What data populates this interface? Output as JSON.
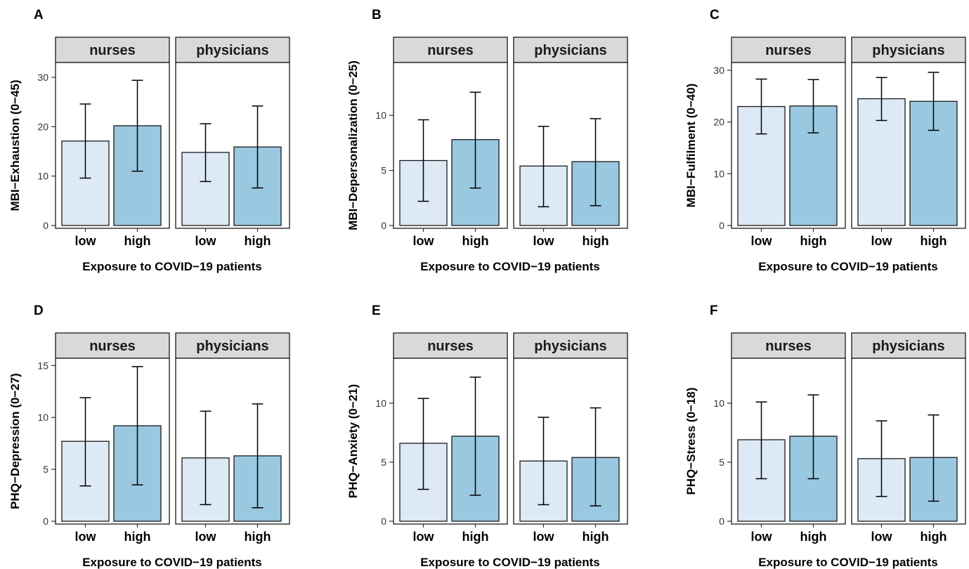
{
  "figure": {
    "xlabel": "Exposure to COVID−19 patients",
    "facets": [
      "nurses",
      "physicians"
    ],
    "categories": [
      "low",
      "high"
    ],
    "colors": {
      "low": "#dde9f5",
      "high": "#9ac8e0",
      "strip": "#d9d9d9",
      "border": "#1a1a1a"
    }
  },
  "chart_data": [
    {
      "type": "bar",
      "panel": "A",
      "ylabel": "MBI−Exhaustion (0−45)",
      "ylim": [
        0,
        33
      ],
      "yticks": [
        0,
        10,
        20,
        30
      ],
      "series": [
        {
          "facet": "nurses",
          "values": [
            17.1,
            20.2
          ],
          "error_low": [
            9.6,
            11.0
          ],
          "error_high": [
            24.6,
            29.4
          ]
        },
        {
          "facet": "physicians",
          "values": [
            14.8,
            15.9
          ],
          "error_low": [
            8.9,
            7.6
          ],
          "error_high": [
            20.6,
            24.2
          ]
        }
      ]
    },
    {
      "type": "bar",
      "panel": "B",
      "ylabel": "MBI−Depersonalization (0−25)",
      "ylim": [
        0,
        14.8
      ],
      "yticks": [
        0,
        5,
        10
      ],
      "series": [
        {
          "facet": "nurses",
          "values": [
            5.9,
            7.8
          ],
          "error_low": [
            2.2,
            3.4
          ],
          "error_high": [
            9.6,
            12.1
          ]
        },
        {
          "facet": "physicians",
          "values": [
            5.4,
            5.8
          ],
          "error_low": [
            1.7,
            1.8
          ],
          "error_high": [
            9.0,
            9.7
          ]
        }
      ]
    },
    {
      "type": "bar",
      "panel": "C",
      "ylabel": "MBI−Fulfilment (0−40)",
      "ylim": [
        0,
        31.5
      ],
      "yticks": [
        0,
        10,
        20,
        30
      ],
      "series": [
        {
          "facet": "nurses",
          "values": [
            23.0,
            23.1
          ],
          "error_low": [
            17.7,
            17.9
          ],
          "error_high": [
            28.3,
            28.2
          ]
        },
        {
          "facet": "physicians",
          "values": [
            24.5,
            24.0
          ],
          "error_low": [
            20.3,
            18.4
          ],
          "error_high": [
            28.6,
            29.6
          ]
        }
      ]
    },
    {
      "type": "bar",
      "panel": "D",
      "ylabel": "PHQ−Depression (0−27)",
      "ylim": [
        0,
        15.7
      ],
      "yticks": [
        0,
        5,
        10,
        15
      ],
      "series": [
        {
          "facet": "nurses",
          "values": [
            7.7,
            9.2
          ],
          "error_low": [
            3.4,
            3.5
          ],
          "error_high": [
            11.9,
            14.9
          ]
        },
        {
          "facet": "physicians",
          "values": [
            6.1,
            6.3
          ],
          "error_low": [
            1.6,
            1.3
          ],
          "error_high": [
            10.6,
            11.3
          ]
        }
      ]
    },
    {
      "type": "bar",
      "panel": "E",
      "ylabel": "PHQ−Anxiety (0−21)",
      "ylim": [
        0,
        13.8
      ],
      "yticks": [
        0,
        5,
        10
      ],
      "series": [
        {
          "facet": "nurses",
          "values": [
            6.6,
            7.2
          ],
          "error_low": [
            2.7,
            2.2
          ],
          "error_high": [
            10.4,
            12.2
          ]
        },
        {
          "facet": "physicians",
          "values": [
            5.1,
            5.4
          ],
          "error_low": [
            1.4,
            1.3
          ],
          "error_high": [
            8.8,
            9.6
          ]
        }
      ]
    },
    {
      "type": "bar",
      "panel": "F",
      "ylabel": "PHQ−Stress (0−18)",
      "ylim": [
        0,
        13.8
      ],
      "yticks": [
        0,
        5,
        10
      ],
      "series": [
        {
          "facet": "nurses",
          "values": [
            6.9,
            7.2
          ],
          "error_low": [
            3.6,
            3.6
          ],
          "error_high": [
            10.1,
            10.7
          ]
        },
        {
          "facet": "physicians",
          "values": [
            5.3,
            5.4
          ],
          "error_low": [
            2.1,
            1.7
          ],
          "error_high": [
            8.5,
            9.0
          ]
        }
      ]
    }
  ]
}
